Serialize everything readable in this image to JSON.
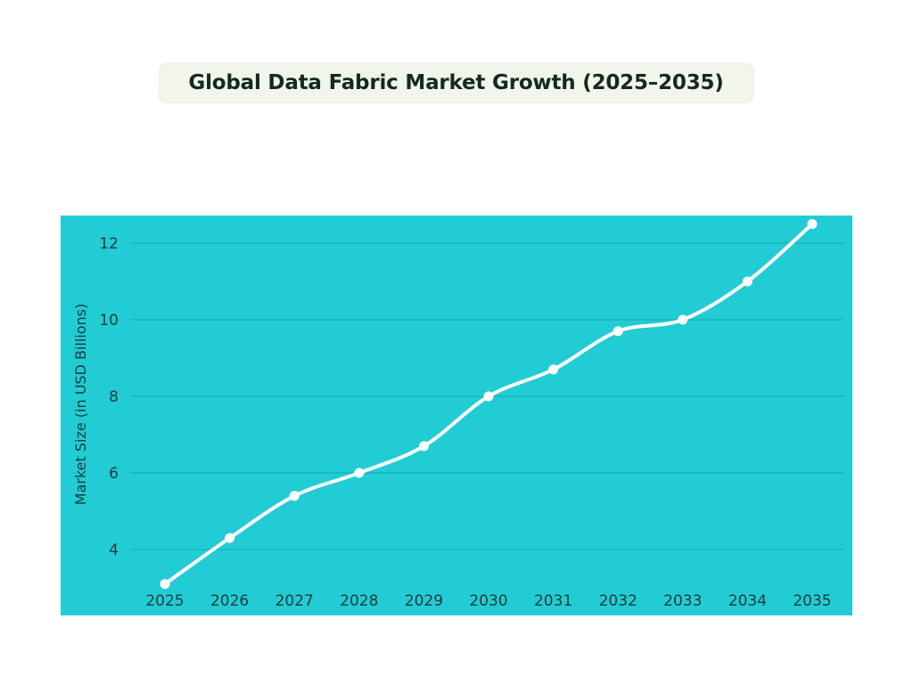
{
  "title": "Global Data Fabric Market Growth (2025–2035)",
  "colors": {
    "plot_background": "#22ccd4",
    "line": "#ffffff",
    "gridline": "#1aa6ad",
    "title_background": "#f1f5ec",
    "title_text": "#152a1e",
    "tick_text": "#1f3a3a"
  },
  "chart_data": {
    "type": "line",
    "title": "Global Data Fabric Market Growth (2025–2035)",
    "xlabel": "",
    "ylabel": "Market Size (in USD Billions)",
    "x": [
      "2025",
      "2026",
      "2027",
      "2028",
      "2029",
      "2030",
      "2031",
      "2032",
      "2033",
      "2034",
      "2035"
    ],
    "series": [
      {
        "values": [
          3.1,
          4.3,
          5.4,
          6.0,
          6.7,
          8.0,
          8.7,
          9.7,
          10.0,
          11.0,
          12.5
        ]
      }
    ],
    "yticks": [
      4,
      6,
      8,
      10,
      12
    ],
    "ylim": [
      3.1,
      12.75
    ],
    "grid": true,
    "legend": "none",
    "markers": true,
    "smooth": true
  }
}
